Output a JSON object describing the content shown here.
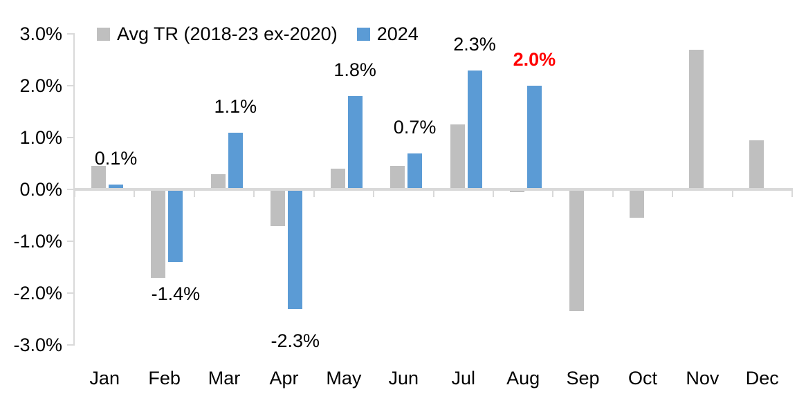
{
  "chart_data": {
    "type": "bar",
    "title": "",
    "categories": [
      "Jan",
      "Feb",
      "Mar",
      "Apr",
      "May",
      "Jun",
      "Jul",
      "Aug",
      "Sep",
      "Oct",
      "Nov",
      "Dec"
    ],
    "series": [
      {
        "name": "Avg TR (2018-23 ex-2020)",
        "color": "#BFBFBF",
        "values": [
          0.45,
          -1.7,
          0.3,
          -0.7,
          0.4,
          0.45,
          1.25,
          -0.05,
          -2.35,
          -0.55,
          2.7,
          0.95
        ]
      },
      {
        "name": "2024",
        "color": "#5B9BD5",
        "values": [
          0.1,
          -1.4,
          1.1,
          -2.3,
          1.8,
          0.7,
          2.3,
          2.0,
          null,
          null,
          null,
          null
        ]
      }
    ],
    "data_labels": [
      {
        "month": "Jan",
        "month_index": 0,
        "text": "0.1%",
        "color": "#000000",
        "bold": false
      },
      {
        "month": "Feb",
        "month_index": 1,
        "text": "-1.4%",
        "color": "#000000",
        "bold": false
      },
      {
        "month": "Mar",
        "month_index": 2,
        "text": "1.1%",
        "color": "#000000",
        "bold": false
      },
      {
        "month": "Apr",
        "month_index": 3,
        "text": "-2.3%",
        "color": "#000000",
        "bold": false
      },
      {
        "month": "May",
        "month_index": 4,
        "text": "1.8%",
        "color": "#000000",
        "bold": false
      },
      {
        "month": "Jun",
        "month_index": 5,
        "text": "0.7%",
        "color": "#000000",
        "bold": false
      },
      {
        "month": "Jul",
        "month_index": 6,
        "text": "2.3%",
        "color": "#000000",
        "bold": false
      },
      {
        "month": "Aug",
        "month_index": 7,
        "text": "2.0%",
        "color": "#FF0000",
        "bold": true
      }
    ],
    "y_axis": {
      "tick_labels": [
        "3.0%",
        "2.0%",
        "1.0%",
        "0.0%",
        "-1.0%",
        "-2.0%",
        "-3.0%"
      ],
      "max": 3.0,
      "min": -3.0,
      "step": 1.0,
      "unit": "%"
    },
    "legend": {
      "position": "top",
      "entries": [
        {
          "label": "Avg TR (2018-23 ex-2020)",
          "color": "#BFBFBF"
        },
        {
          "label": "2024",
          "color": "#5B9BD5"
        }
      ]
    },
    "grid": false,
    "ylim": [
      -3.0,
      3.0
    ],
    "colors": {
      "axis": "#D9D9D9",
      "text": "#000000",
      "highlight": "#FF0000",
      "background": "#FFFFFF"
    }
  }
}
